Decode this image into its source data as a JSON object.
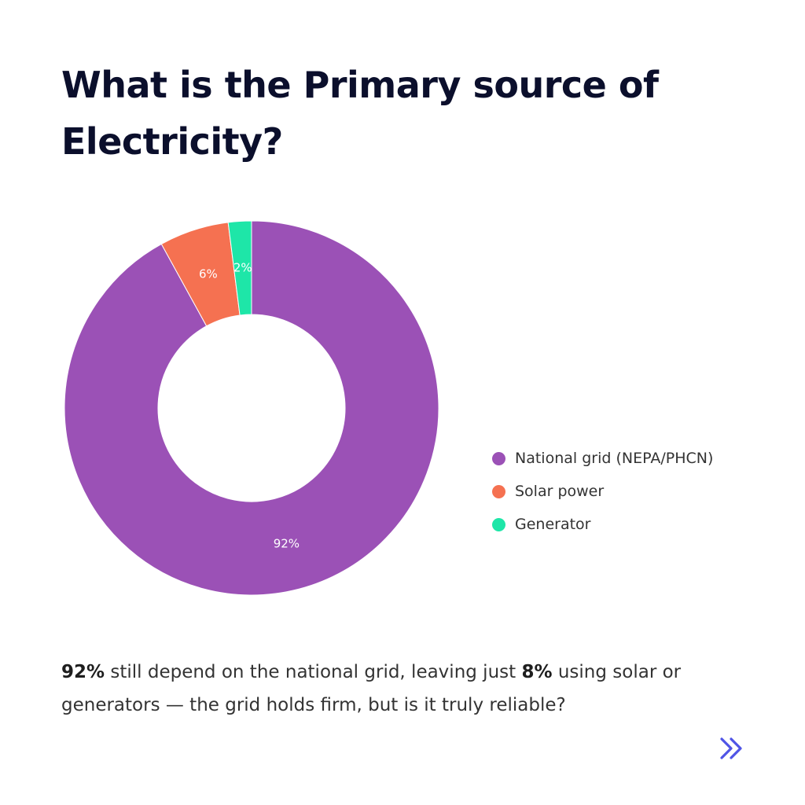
{
  "title": "What is the Primary source of Electricity?",
  "chart_data": {
    "type": "pie",
    "variant": "donut",
    "categories": [
      "National grid (NEPA/PHCN)",
      "Solar power",
      "Generator"
    ],
    "values": [
      92,
      6,
      2
    ],
    "labels": [
      "92%",
      "6%",
      "2%"
    ],
    "colors": [
      "#9b51b6",
      "#f57151",
      "#1ee6a8"
    ],
    "legend_position": "right"
  },
  "caption": {
    "lead_bold": "92%",
    "part1": " still depend on the national grid, leaving just ",
    "mid_bold": "8%",
    "part2": " using solar or generators — the grid holds firm, but is it truly reliable?"
  },
  "nav": {
    "icon": "double-chevron-right-icon",
    "color": "#4f54e6"
  }
}
